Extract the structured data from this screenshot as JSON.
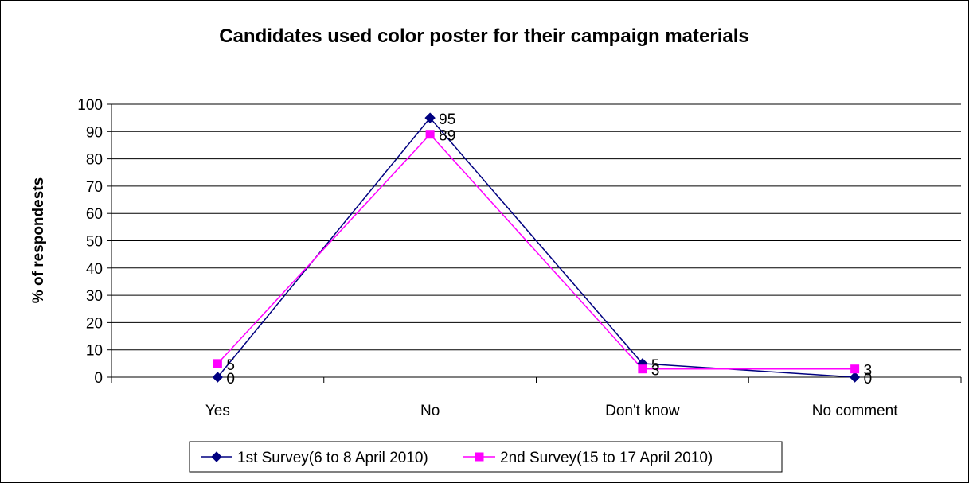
{
  "chart_data": {
    "type": "line",
    "title": "Candidates used color poster for their campaign materials",
    "xlabel": "",
    "ylabel": "% of respondests",
    "categories": [
      "Yes",
      "No",
      "Don't know",
      "No comment"
    ],
    "ylim": [
      0,
      100
    ],
    "yticks": [
      0,
      10,
      20,
      30,
      40,
      50,
      60,
      70,
      80,
      90,
      100
    ],
    "grid": true,
    "legend": "bottom",
    "series": [
      {
        "name": "1st Survey(6 to 8 April 2010)",
        "values": [
          0,
          95,
          5,
          0
        ],
        "labels": [
          "0",
          "95",
          "5",
          "0"
        ],
        "color": "#000080",
        "marker": "diamond"
      },
      {
        "name": "2nd Survey(15 to 17 April 2010)",
        "values": [
          5,
          89,
          3,
          3
        ],
        "labels": [
          "5",
          "89",
          "3",
          "3"
        ],
        "color": "#FF00FF",
        "marker": "square"
      }
    ]
  }
}
